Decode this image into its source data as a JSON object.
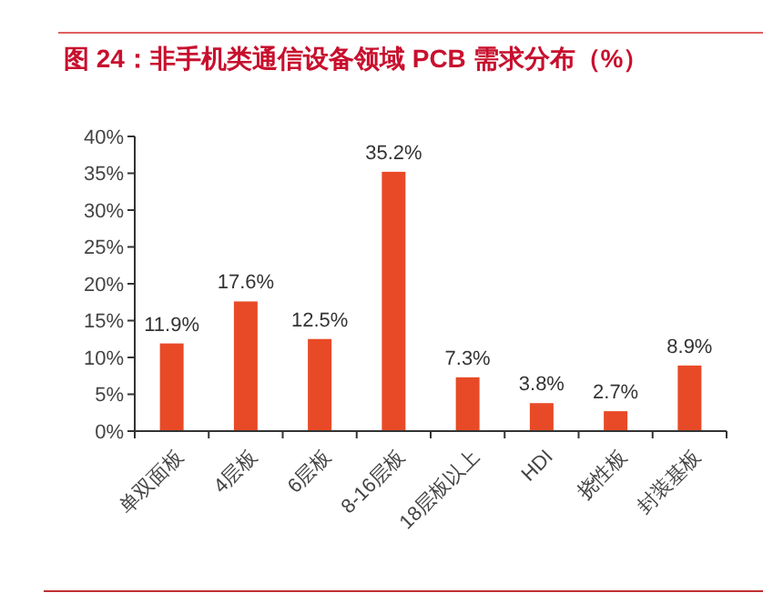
{
  "chart_data": {
    "type": "bar",
    "title": "图 24：非手机类通信设备领域 PCB 需求分布（%）",
    "categories": [
      "单双面板",
      "4层板",
      "6层板",
      "8-16层板",
      "18层板以上",
      "HDI",
      "挠性板",
      "封装基板"
    ],
    "values": [
      11.9,
      17.6,
      12.5,
      35.2,
      7.3,
      3.8,
      2.7,
      8.9
    ],
    "value_labels": [
      "11.9%",
      "17.6%",
      "12.5%",
      "35.2%",
      "7.3%",
      "3.8%",
      "2.7%",
      "8.9%"
    ],
    "color": "#e84a27",
    "ylim": [
      0,
      40
    ],
    "yticks": [
      {
        "value": 0,
        "label": "0%"
      },
      {
        "value": 5,
        "label": "5%"
      },
      {
        "value": 10,
        "label": "10%"
      },
      {
        "value": 15,
        "label": "15%"
      },
      {
        "value": 20,
        "label": "20%"
      },
      {
        "value": 25,
        "label": "25%"
      },
      {
        "value": 30,
        "label": "30%"
      },
      {
        "value": 35,
        "label": "35%"
      },
      {
        "value": 40,
        "label": "40%"
      }
    ],
    "grid": false
  }
}
